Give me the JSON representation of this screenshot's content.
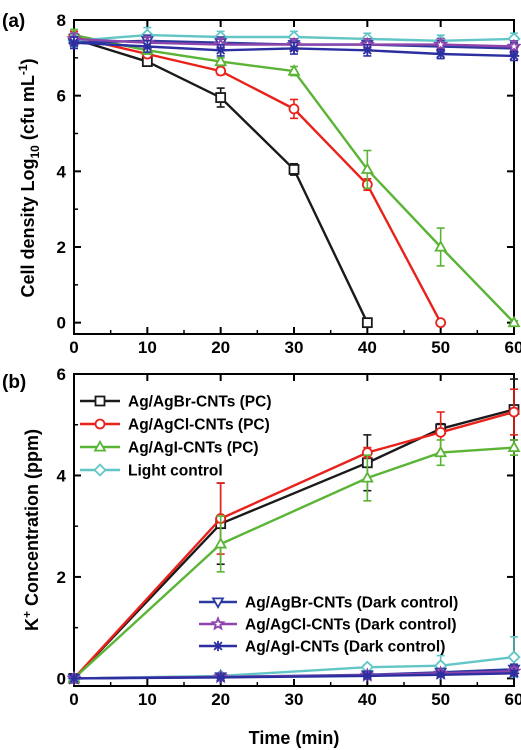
{
  "chart_data": [
    {
      "panel_label": "(a)",
      "type": "line",
      "ylabel": "Cell density Log10 (cfu mL-1)",
      "ylabel_parts": {
        "main": "Cell density Log",
        "sub": "10",
        "paren_open": " (cfu mL",
        "sup": "-1",
        "paren_close": ")"
      },
      "xlim": [
        0,
        60
      ],
      "ylim": [
        -0.3,
        8
      ],
      "x_ticks": [
        0,
        10,
        20,
        30,
        40,
        50,
        60
      ],
      "y_ticks": [
        0,
        2,
        4,
        6,
        8
      ],
      "series": [
        {
          "key": "agbr_pc",
          "color": "#1a1a1a",
          "marker": "square",
          "x": [
            0,
            10,
            20,
            30,
            40
          ],
          "y": [
            7.5,
            6.9,
            5.95,
            4.05,
            0
          ],
          "err": [
            0.15,
            0.1,
            0.25,
            0.15,
            0.05
          ]
        },
        {
          "key": "agcl_pc",
          "color": "#e8221b",
          "marker": "circle",
          "x": [
            0,
            10,
            20,
            30,
            40,
            50
          ],
          "y": [
            7.55,
            7.1,
            6.65,
            5.65,
            3.65,
            0
          ],
          "err": [
            0.15,
            0.1,
            0.1,
            0.25,
            0.15,
            0.05
          ]
        },
        {
          "key": "agi_pc",
          "color": "#5ab435",
          "marker": "triangle",
          "x": [
            0,
            10,
            20,
            30,
            40,
            50,
            60
          ],
          "y": [
            7.6,
            7.2,
            6.9,
            6.65,
            4.05,
            2.0,
            0
          ],
          "err": [
            0.15,
            0.1,
            0.1,
            0.12,
            0.5,
            0.5,
            0.05
          ]
        },
        {
          "key": "light_ctrl",
          "color": "#62c6c6",
          "marker": "diamond",
          "x": [
            0,
            10,
            20,
            30,
            40,
            50,
            60
          ],
          "y": [
            7.45,
            7.6,
            7.55,
            7.55,
            7.5,
            7.45,
            7.5
          ],
          "err": [
            0.15,
            0.2,
            0.15,
            0.15,
            0.15,
            0.15,
            0.15
          ]
        },
        {
          "key": "agbr_dark",
          "color": "#2c3a9e",
          "marker": "triangle-down",
          "x": [
            0,
            10,
            20,
            30,
            40,
            50,
            60
          ],
          "y": [
            7.4,
            7.45,
            7.4,
            7.35,
            7.35,
            7.3,
            7.25
          ],
          "err": [
            0.15,
            0.15,
            0.15,
            0.15,
            0.15,
            0.15,
            0.15
          ]
        },
        {
          "key": "agcl_dark",
          "color": "#8e44ad",
          "marker": "star",
          "x": [
            0,
            10,
            20,
            30,
            40,
            50,
            60
          ],
          "y": [
            7.5,
            7.4,
            7.35,
            7.35,
            7.35,
            7.35,
            7.3
          ],
          "err": [
            0.15,
            0.15,
            0.15,
            0.15,
            0.15,
            0.15,
            0.15
          ]
        },
        {
          "key": "agi_dark",
          "color": "#2b2fa0",
          "marker": "asterisk",
          "x": [
            0,
            10,
            20,
            30,
            40,
            50,
            60
          ],
          "y": [
            7.4,
            7.3,
            7.2,
            7.25,
            7.2,
            7.1,
            7.05
          ],
          "err": [
            0.15,
            0.15,
            0.15,
            0.15,
            0.15,
            0.12,
            0.12
          ]
        }
      ]
    },
    {
      "panel_label": "(b)",
      "type": "line",
      "xlabel": "Time (min)",
      "ylabel": "K+ Concentration (ppm)",
      "ylabel_parts": {
        "main": "K",
        "sup": "+",
        "rest": " Concentration (ppm)"
      },
      "xlim": [
        0,
        60
      ],
      "ylim": [
        -0.15,
        6
      ],
      "x_ticks": [
        0,
        10,
        20,
        30,
        40,
        50,
        60
      ],
      "y_ticks": [
        0,
        2,
        4,
        6
      ],
      "legend_top": [
        "agbr_pc",
        "agcl_pc",
        "agi_pc",
        "light_ctrl"
      ],
      "legend_bottom": [
        "agbr_dark",
        "agcl_dark",
        "agi_dark"
      ],
      "series": [
        {
          "key": "agbr_pc",
          "name": "Ag/AgBr-CNTs (PC)",
          "color": "#1a1a1a",
          "marker": "square",
          "x": [
            0,
            20,
            40,
            50,
            60
          ],
          "y": [
            0,
            3.05,
            4.25,
            4.92,
            5.3
          ],
          "err": [
            0,
            0.8,
            0.55,
            0.1,
            0.6
          ]
        },
        {
          "key": "agcl_pc",
          "name": "Ag/AgCl-CNTs (PC)",
          "color": "#e8221b",
          "marker": "circle",
          "x": [
            0,
            20,
            40,
            50,
            60
          ],
          "y": [
            0,
            3.15,
            4.45,
            4.85,
            5.25
          ],
          "err": [
            0,
            0.7,
            0.1,
            0.4,
            0.45
          ]
        },
        {
          "key": "agi_pc",
          "name": "Ag/AgI-CNTs (PC)",
          "color": "#5ab435",
          "marker": "triangle",
          "x": [
            0,
            20,
            40,
            50,
            60
          ],
          "y": [
            0,
            2.65,
            3.95,
            4.45,
            4.55
          ],
          "err": [
            0,
            0.55,
            0.45,
            0.25,
            0.15
          ]
        },
        {
          "key": "light_ctrl",
          "name": "Light control",
          "color": "#62c6c6",
          "marker": "diamond",
          "x": [
            0,
            20,
            40,
            50,
            60
          ],
          "y": [
            0,
            0.05,
            0.22,
            0.25,
            0.42
          ],
          "err": [
            0,
            0.05,
            0.05,
            0.2,
            0.4
          ]
        },
        {
          "key": "agbr_dark",
          "name": "Ag/AgBr-CNTs (Dark control)",
          "color": "#2c3a9e",
          "marker": "triangle-down",
          "x": [
            0,
            20,
            40,
            50,
            60
          ],
          "y": [
            0,
            0.03,
            0.07,
            0.12,
            0.18
          ],
          "err": [
            0,
            0.03,
            0.05,
            0.05,
            0.1
          ]
        },
        {
          "key": "agcl_dark",
          "name": "Ag/AgCl-CNTs (Dark control)",
          "color": "#8e44ad",
          "marker": "star",
          "x": [
            0,
            20,
            40,
            50,
            60
          ],
          "y": [
            0,
            0.03,
            0.06,
            0.1,
            0.14
          ],
          "err": [
            0,
            0.03,
            0.05,
            0.05,
            0.08
          ]
        },
        {
          "key": "agi_dark",
          "name": "Ag/AgI-CNTs (Dark control)",
          "color": "#2b2fa0",
          "marker": "asterisk",
          "x": [
            0,
            20,
            40,
            50,
            60
          ],
          "y": [
            0,
            0.02,
            0.05,
            0.07,
            0.1
          ],
          "err": [
            0,
            0.02,
            0.03,
            0.04,
            0.05
          ]
        }
      ]
    }
  ]
}
